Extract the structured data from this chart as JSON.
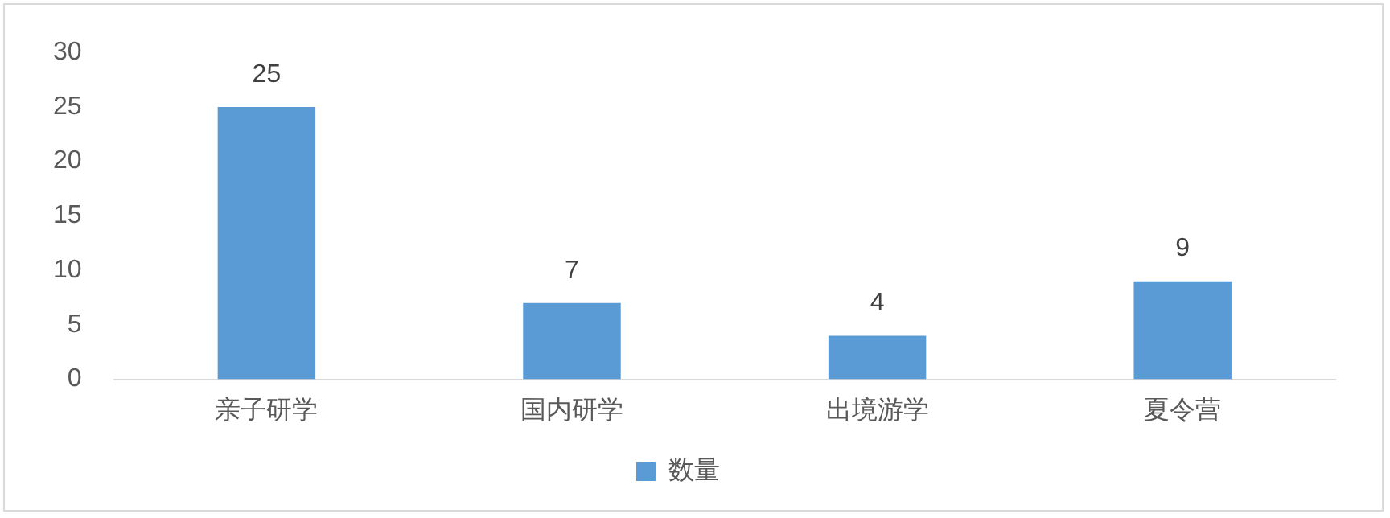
{
  "chart_data": {
    "type": "bar",
    "categories": [
      "亲子研学",
      "国内研学",
      "出境游学",
      "夏令营"
    ],
    "series": [
      {
        "name": "数量",
        "color": "#5b9bd5",
        "values": [
          25,
          7,
          4,
          9
        ]
      }
    ],
    "ylim": [
      0,
      30
    ],
    "yticks": [
      0,
      5,
      10,
      15,
      20,
      25,
      30
    ],
    "grid": false,
    "legend": "bottom",
    "data_labels": true
  }
}
